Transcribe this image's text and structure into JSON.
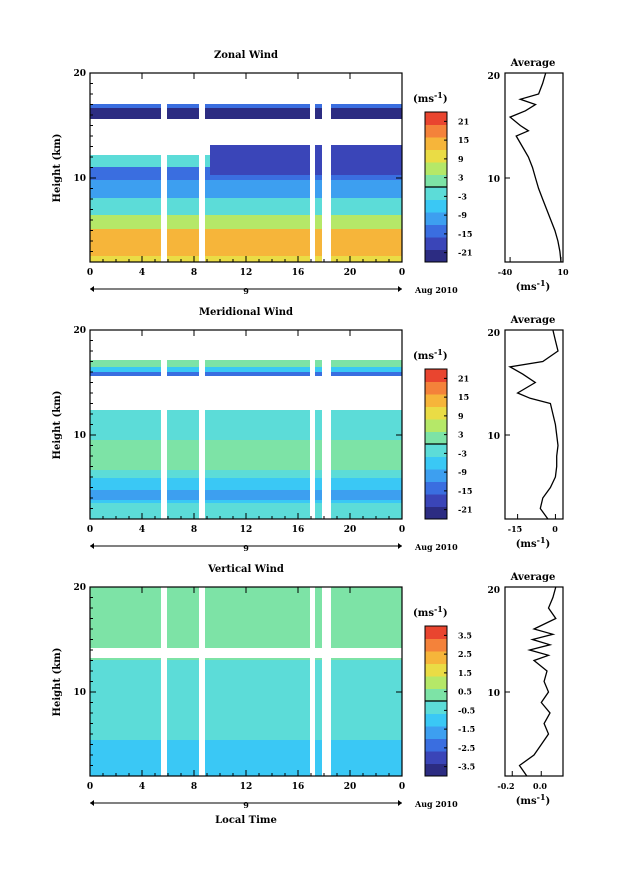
{
  "colors": {
    "cbar": [
      "#2c2c82",
      "#3a45b8",
      "#3a6ee0",
      "#3d9ff0",
      "#3ac8f5",
      "#5cdcd8",
      "#7de3a6",
      "#b5e868",
      "#eadc45",
      "#f6b53a",
      "#f4823a",
      "#e9452f"
    ]
  },
  "chart_data": [
    {
      "type": "heatmap",
      "title": "Zonal Wind",
      "ylabel": "Height (km)",
      "xlabel": "",
      "x_ticks": [
        "0",
        "4",
        "8",
        "12",
        "16",
        "20",
        "0"
      ],
      "day_label": "9",
      "date_label": "Aug 2010",
      "y_ticks": [
        "10",
        "20"
      ],
      "xlim": [
        0,
        24
      ],
      "ylim": [
        2,
        20
      ],
      "colorbar": {
        "unit": "(ms",
        "unit_exp": "-1",
        "unit_close": ")",
        "ticks": [
          "21",
          "15",
          "9",
          "3",
          "-3",
          "-9",
          "-15",
          "-21"
        ],
        "range": [
          -24,
          24
        ]
      },
      "profile": {
        "title": "Average",
        "x_ticks": [
          "-40",
          "10"
        ],
        "xlim": [
          -45,
          12
        ],
        "xlabel": "(ms",
        "xlabel_exp": "-1",
        "xlabel_close": ")",
        "points": [
          [
            10,
            2
          ],
          [
            9,
            3
          ],
          [
            7,
            4
          ],
          [
            4,
            5
          ],
          [
            0,
            6
          ],
          [
            -4,
            7
          ],
          [
            -8,
            8
          ],
          [
            -12,
            9
          ],
          [
            -15,
            10
          ],
          [
            -18,
            11
          ],
          [
            -22,
            12
          ],
          [
            -28,
            13
          ],
          [
            -34,
            14
          ],
          [
            -22,
            14.5
          ],
          [
            -30,
            15
          ],
          [
            -40,
            15.8
          ],
          [
            -25,
            16.4
          ],
          [
            -15,
            17
          ],
          [
            -30,
            17.5
          ],
          [
            -12,
            18
          ],
          [
            -8,
            19
          ],
          [
            -5,
            20
          ]
        ]
      }
    },
    {
      "type": "heatmap",
      "title": "Meridional Wind",
      "ylabel": "Height (km)",
      "xlabel": "",
      "x_ticks": [
        "0",
        "4",
        "8",
        "12",
        "16",
        "20",
        "0"
      ],
      "day_label": "9",
      "date_label": "Aug 2010",
      "y_ticks": [
        "10",
        "20"
      ],
      "xlim": [
        0,
        24
      ],
      "ylim": [
        2,
        20
      ],
      "colorbar": {
        "unit": "(ms",
        "unit_exp": "-1",
        "unit_close": ")",
        "ticks": [
          "21",
          "15",
          "9",
          "3",
          "-3",
          "-9",
          "-15",
          "-21"
        ],
        "range": [
          -24,
          24
        ]
      },
      "profile": {
        "title": "Average",
        "x_ticks": [
          "-15",
          "0"
        ],
        "xlim": [
          -20,
          3
        ],
        "xlabel": "(ms",
        "xlabel_exp": "-1",
        "xlabel_close": ")",
        "points": [
          [
            -3,
            2
          ],
          [
            -6,
            3
          ],
          [
            -5,
            4
          ],
          [
            -2,
            5
          ],
          [
            0,
            6
          ],
          [
            0.5,
            7
          ],
          [
            0.5,
            8
          ],
          [
            1,
            9
          ],
          [
            0.5,
            10
          ],
          [
            0,
            11
          ],
          [
            -1,
            12
          ],
          [
            -2,
            13
          ],
          [
            -10,
            13.5
          ],
          [
            -15,
            14
          ],
          [
            -8,
            15
          ],
          [
            -13,
            15.8
          ],
          [
            -18,
            16.5
          ],
          [
            -5,
            17
          ],
          [
            1,
            18
          ],
          [
            0,
            19
          ],
          [
            -1,
            20
          ]
        ]
      }
    },
    {
      "type": "heatmap",
      "title": "Vertical Wind",
      "ylabel": "Height (km)",
      "xlabel": "Local Time",
      "x_ticks": [
        "0",
        "4",
        "8",
        "12",
        "16",
        "20",
        "0"
      ],
      "day_label": "9",
      "date_label": "Aug 2010",
      "y_ticks": [
        "10",
        "20"
      ],
      "xlim": [
        0,
        24
      ],
      "ylim": [
        2,
        20
      ],
      "colorbar": {
        "unit": "(ms",
        "unit_exp": "-1",
        "unit_close": ")",
        "ticks": [
          "3.5",
          "2.5",
          "1.5",
          "0.5",
          "-0.5",
          "-1.5",
          "-2.5",
          "-3.5"
        ],
        "range": [
          -4,
          4
        ]
      },
      "profile": {
        "title": "Average",
        "x_ticks": [
          "-0.2",
          "0.0"
        ],
        "xlim": [
          -0.25,
          0.15
        ],
        "xlabel": "(ms",
        "xlabel_exp": "-1",
        "xlabel_close": ")",
        "points": [
          [
            -0.1,
            2
          ],
          [
            -0.15,
            3
          ],
          [
            -0.05,
            4
          ],
          [
            0.0,
            5
          ],
          [
            0.05,
            6
          ],
          [
            0.02,
            7
          ],
          [
            0.06,
            8
          ],
          [
            0.0,
            9
          ],
          [
            0.05,
            10
          ],
          [
            0.02,
            11
          ],
          [
            0.04,
            12
          ],
          [
            -0.05,
            13
          ],
          [
            0.05,
            13.5
          ],
          [
            -0.08,
            14
          ],
          [
            0.06,
            14.5
          ],
          [
            -0.06,
            15
          ],
          [
            0.08,
            15.5
          ],
          [
            -0.05,
            16
          ],
          [
            0.1,
            17
          ],
          [
            0.05,
            18
          ],
          [
            0.08,
            19
          ],
          [
            0.1,
            20
          ]
        ]
      }
    }
  ]
}
